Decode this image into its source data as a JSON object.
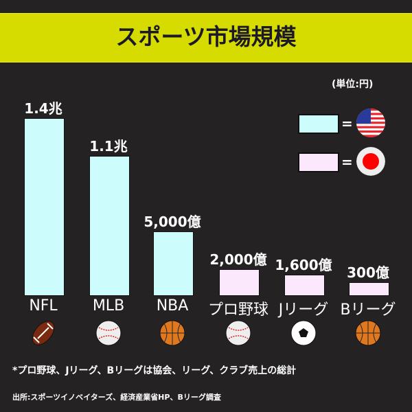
{
  "title": "スポーツ市場規模",
  "unit_label": "(単位:円)",
  "legend": [
    {
      "color": "#ccfcfc",
      "eq": "=",
      "flag": "usa-flag-icon"
    },
    {
      "color": "#fce8fc",
      "eq": "=",
      "flag": "japan-flag-icon"
    }
  ],
  "chart_data": {
    "type": "bar",
    "categories": [
      "NFL",
      "MLB",
      "NBA",
      "プロ野球",
      "Jリーグ",
      "Bリーグ"
    ],
    "values": [
      14000,
      11000,
      5000,
      2000,
      1600,
      300
    ],
    "value_unit": "億円",
    "data_labels": [
      "1.4兆",
      "1.1兆",
      "5,000億",
      "2,000億",
      "1,600億",
      "300億"
    ],
    "colors": [
      "#ccfcfc",
      "#ccfcfc",
      "#ccfcfc",
      "#fce8fc",
      "#fce8fc",
      "#fce8fc"
    ],
    "icons": [
      "football-icon",
      "baseball-icon",
      "basketball-icon",
      "baseball-icon",
      "soccer-ball-icon",
      "basketball-icon"
    ],
    "grid": false
  },
  "footnote": "*プロ野球、Jリーグ、Bリーグは協会、リーグ、クラブ売上の総計",
  "source": "出所:スポーツイノベイターズ、経済産業省HP、Bリーグ調査"
}
